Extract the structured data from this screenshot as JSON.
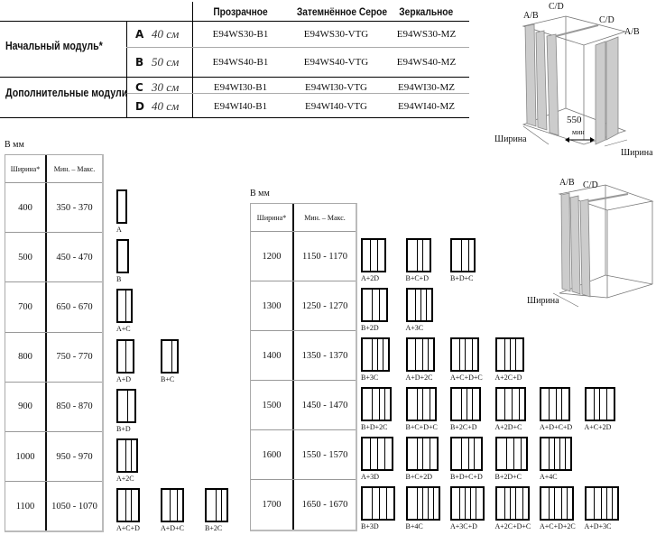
{
  "modules_table": {
    "headers": [
      "Прозрачное",
      "Затемнённое Серое",
      "Зеркальное"
    ],
    "groups": [
      "Начальный модуль*",
      "Дополнительные модули"
    ],
    "rows": [
      {
        "letter": "A",
        "size": "40 см",
        "codes": [
          "E94WS30-B1",
          "E94WS30-VTG",
          "E94WS30-MZ"
        ]
      },
      {
        "letter": "B",
        "size": "50 см",
        "codes": [
          "E94WS40-B1",
          "E94WS40-VTG",
          "E94WS40-MZ"
        ]
      },
      {
        "letter": "C",
        "size": "30 см",
        "codes": [
          "E94WI30-B1",
          "E94WI30-VTG",
          "E94WI30-MZ"
        ]
      },
      {
        "letter": "D",
        "size": "40 см",
        "codes": [
          "E94WI40-B1",
          "E94WI40-VTG",
          "E94WI40-MZ"
        ]
      }
    ]
  },
  "module_widths_cm": {
    "A": 40,
    "B": 50,
    "C": 30,
    "D": 40
  },
  "left_table": {
    "unit": "В мм",
    "col_width": "Ширина*",
    "col_range": "Мин. – Макс.",
    "rows": [
      {
        "width": "400",
        "range": "350 - 370",
        "configs": [
          "A"
        ]
      },
      {
        "width": "500",
        "range": "450 - 470",
        "configs": [
          "B"
        ]
      },
      {
        "width": "700",
        "range": "650 - 670",
        "configs": [
          "A+C"
        ]
      },
      {
        "width": "800",
        "range": "750 - 770",
        "configs": [
          "A+D",
          "B+C"
        ]
      },
      {
        "width": "900",
        "range": "850 - 870",
        "configs": [
          "B+D"
        ]
      },
      {
        "width": "1000",
        "range": "950 - 970",
        "configs": [
          "A+2C"
        ]
      },
      {
        "width": "1100",
        "range": "1050 - 1070",
        "configs": [
          "A+C+D",
          "A+D+C",
          "B+2C"
        ]
      }
    ]
  },
  "right_table": {
    "unit": "В мм",
    "col_width": "Ширина*",
    "col_range": "Мин. – Макс.",
    "rows": [
      {
        "width": "1200",
        "range": "1150 - 1170",
        "configs": [
          "A+2D",
          "B+C+D",
          "B+D+C"
        ]
      },
      {
        "width": "1300",
        "range": "1250 - 1270",
        "configs": [
          "B+2D",
          "A+3C"
        ]
      },
      {
        "width": "1400",
        "range": "1350 - 1370",
        "configs": [
          "B+3C",
          "A+D+2C",
          "A+C+D+C",
          "A+2C+D"
        ]
      },
      {
        "width": "1500",
        "range": "1450 - 1470",
        "configs": [
          "B+D+2C",
          "B+C+D+C",
          "B+2C+D",
          "A+2D+C",
          "A+D+C+D",
          "A+C+2D"
        ]
      },
      {
        "width": "1600",
        "range": "1550 - 1570",
        "configs": [
          "A+3D",
          "B+C+2D",
          "B+D+C+D",
          "B+2D+C",
          "A+4C"
        ]
      },
      {
        "width": "1700",
        "range": "1650 - 1670",
        "configs": [
          "B+3D",
          "B+4C",
          "A+3C+D",
          "A+2C+D+C",
          "A+C+D+2C",
          "A+D+3C"
        ]
      }
    ]
  },
  "diagram_top": {
    "ab_left": "A/B",
    "cd_left": "C/D",
    "cd_right": "C/D",
    "ab_right": "A/B",
    "gap_value": "550",
    "gap_unit": "мин",
    "width_left": "Ширина",
    "width_right": "Ширина"
  },
  "diagram_bottom": {
    "ab": "A/B",
    "cd": "C/D",
    "width": "Ширина"
  }
}
